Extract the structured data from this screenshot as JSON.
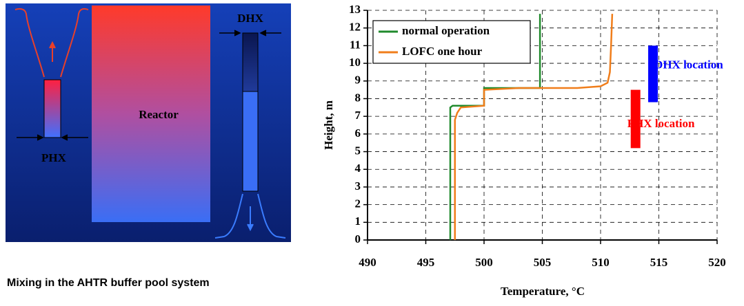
{
  "diagram": {
    "reactor": "Reactor",
    "phx": "PHX",
    "dhx": "DHX",
    "caption": "Mixing in the AHTR buffer pool system"
  },
  "chart_data": {
    "type": "line",
    "xlabel": "Temperature, °C",
    "ylabel": "Height, m",
    "xlim": [
      490,
      520
    ],
    "ylim": [
      0,
      13
    ],
    "xticks": [
      490,
      495,
      500,
      505,
      510,
      515,
      520
    ],
    "yticks": [
      0,
      1,
      2,
      3,
      4,
      5,
      6,
      7,
      8,
      9,
      10,
      11,
      12,
      13
    ],
    "grid": true,
    "legend": "upper left",
    "series": [
      {
        "name": "normal operation",
        "color": "#1f8a2c",
        "x": [
          497.1,
          497.1,
          497.3,
          500,
          500,
          504.8,
          504.8
        ],
        "values": [
          0,
          7.5,
          7.6,
          7.6,
          8.6,
          8.6,
          12.8
        ]
      },
      {
        "name": "LOFC one hour",
        "color": "#f07d1a",
        "x": [
          497.5,
          497.5,
          497.7,
          498,
          500,
          500,
          503,
          508,
          510,
          510.6,
          510.8,
          510.9,
          511
        ],
        "values": [
          0,
          6.8,
          7.2,
          7.5,
          7.6,
          8.5,
          8.6,
          8.6,
          8.7,
          8.9,
          9.5,
          11,
          12.8
        ]
      }
    ],
    "annotations": [
      {
        "text": "DHX location",
        "color": "#0000ff",
        "x": 514.5,
        "y": [
          7.8,
          11
        ]
      },
      {
        "text": "PHX location",
        "color": "#ff0000",
        "x": 513,
        "y": [
          5.2,
          8.5
        ]
      }
    ]
  }
}
